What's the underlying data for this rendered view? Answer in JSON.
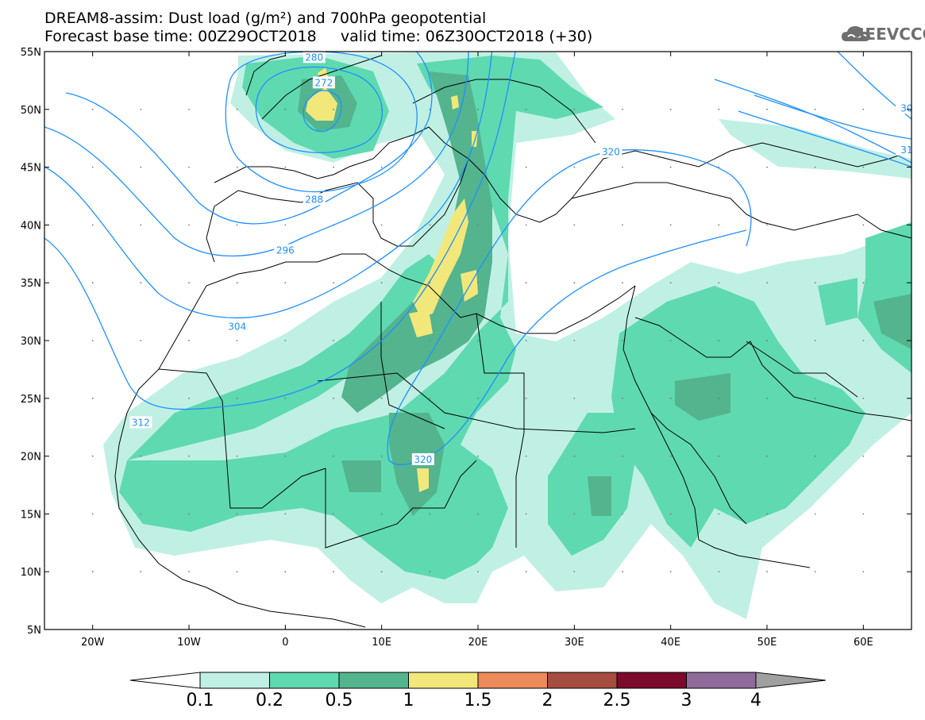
{
  "header": {
    "title_line1": "DREAM8-assim: Dust load (g/m²) and 700hPa geopotential",
    "title_line2": "Forecast base time: 00Z29OCT2018     valid time: 06Z30OCT2018 (+30)",
    "logo_text": "SEEVCCC"
  },
  "map": {
    "lon_range": [
      -25,
      65
    ],
    "lat_range": [
      5,
      55
    ],
    "lon_ticks": [
      {
        "value": -20,
        "label": "20W"
      },
      {
        "value": -10,
        "label": "10W"
      },
      {
        "value": 0,
        "label": "0"
      },
      {
        "value": 10,
        "label": "10E"
      },
      {
        "value": 20,
        "label": "20E"
      },
      {
        "value": 30,
        "label": "30E"
      },
      {
        "value": 40,
        "label": "40E"
      },
      {
        "value": 50,
        "label": "50E"
      },
      {
        "value": 60,
        "label": "60E"
      }
    ],
    "lat_ticks": [
      {
        "value": 55,
        "label": "55N"
      },
      {
        "value": 50,
        "label": "50N"
      },
      {
        "value": 45,
        "label": "45N"
      },
      {
        "value": 40,
        "label": "40N"
      },
      {
        "value": 35,
        "label": "35N"
      },
      {
        "value": 30,
        "label": "30N"
      },
      {
        "value": 25,
        "label": "25N"
      },
      {
        "value": 20,
        "label": "20N"
      },
      {
        "value": 15,
        "label": "15N"
      },
      {
        "value": 10,
        "label": "10N"
      },
      {
        "value": 5,
        "label": "5N"
      }
    ],
    "contour_labels": [
      {
        "text": "280",
        "lon": 3,
        "lat": 54.5
      },
      {
        "text": "272",
        "lon": 4,
        "lat": 52.3
      },
      {
        "text": "288",
        "lon": 3,
        "lat": 42.2
      },
      {
        "text": "296",
        "lon": 0,
        "lat": 37.8
      },
      {
        "text": "304",
        "lon": -5,
        "lat": 31.2
      },
      {
        "text": "312",
        "lon": -15,
        "lat": 22.9
      },
      {
        "text": "320",
        "lon": 14.3,
        "lat": 19.7
      },
      {
        "text": "320",
        "lon": 33.8,
        "lat": 46.3
      },
      {
        "text": "30",
        "lon": 64.5,
        "lat": 50.1
      },
      {
        "text": "31",
        "lon": 64.5,
        "lat": 46.5
      }
    ]
  },
  "colorbar": {
    "levels": [
      "0.1",
      "0.2",
      "0.5",
      "1",
      "1.5",
      "2",
      "2.5",
      "3",
      "4"
    ],
    "colors": [
      "#c0f0e4",
      "#5fd9b0",
      "#53b48e",
      "#f2e77a",
      "#ec8a5a",
      "#a54d3f",
      "#7b0a2c",
      "#8f6b9a"
    ],
    "low_color": "#ffffff",
    "high_color": "#a0a0a0"
  },
  "colors": {
    "contour": "#1e90ff",
    "coast": "#000000",
    "dust_low": "#c0f0e4",
    "dust_mid": "#5fd9b0",
    "dust_high": "#53b48e",
    "dust_peak": "#f2e77a"
  }
}
